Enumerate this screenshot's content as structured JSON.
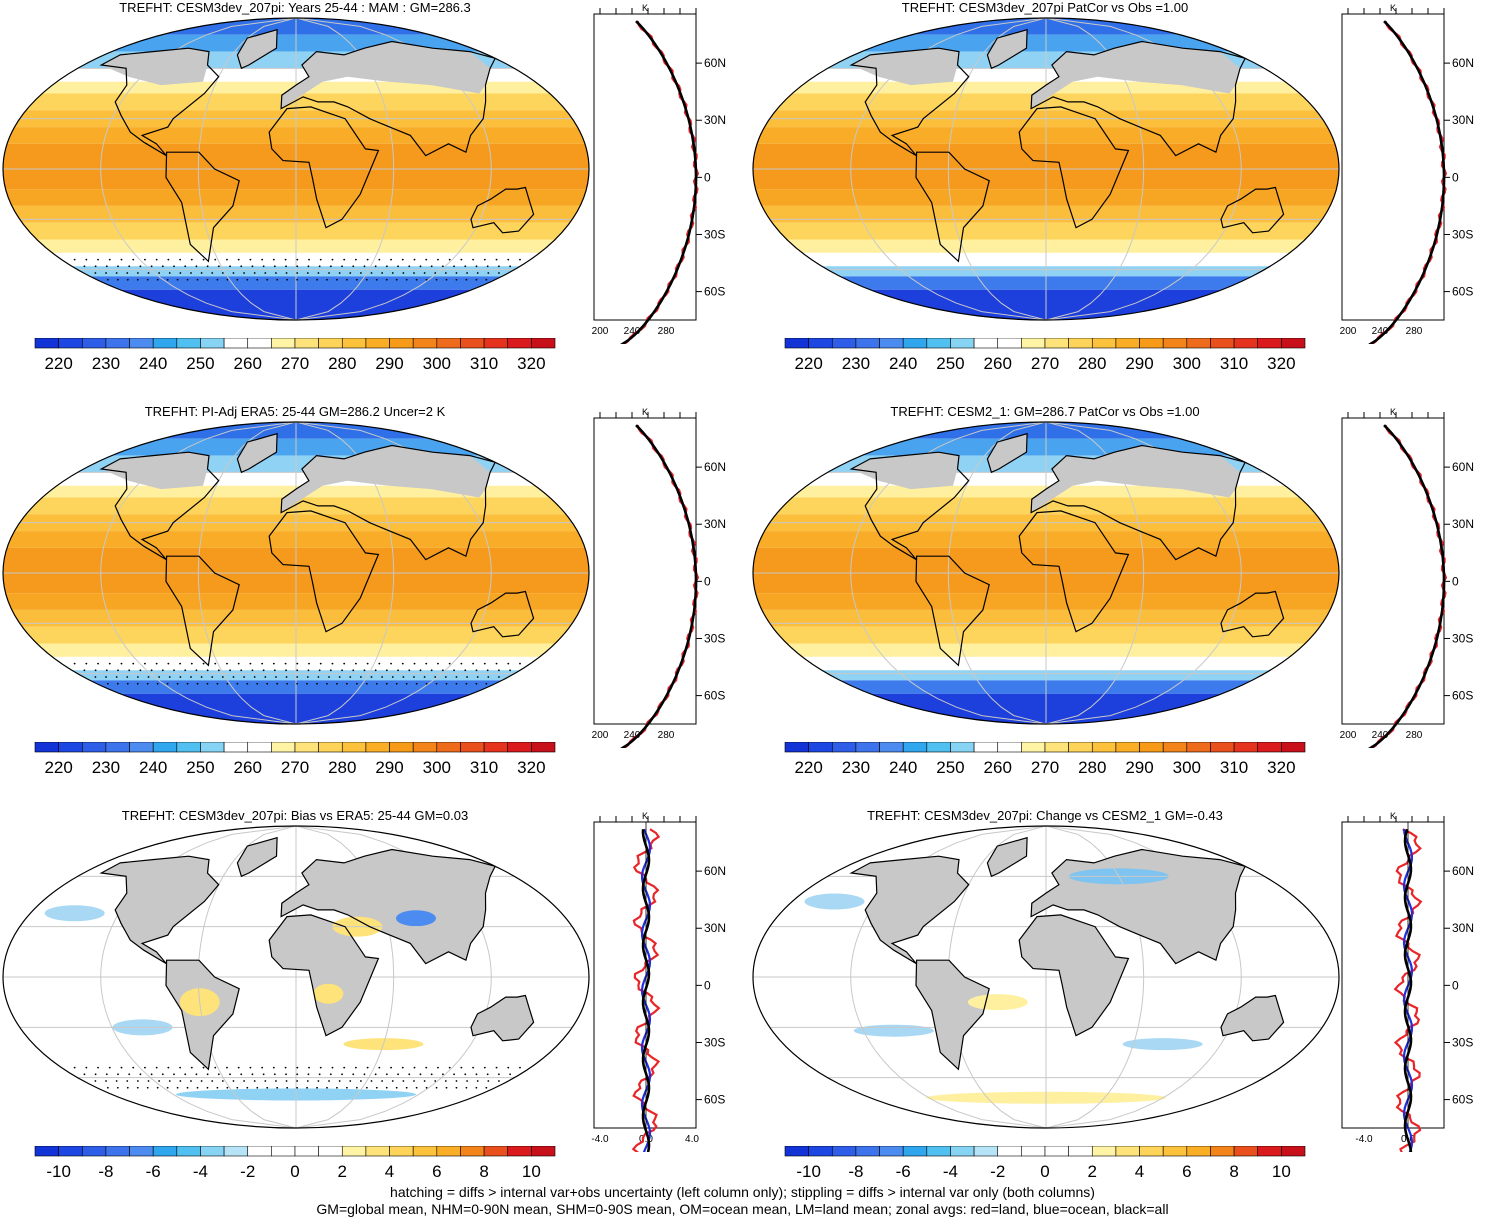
{
  "footer": {
    "line1": "hatching = diffs > internal var+obs uncertainty (left column only); stippling = diffs > internal var only (both columns)",
    "line2": "GM=global mean, NHM=0-90N mean, SHM=0-90S mean, OM=ocean mean, LM=land mean; zonal avgs: red=land, blue=ocean, black=all"
  },
  "colors": {
    "land": "#e8262a",
    "ocean": "#1f2ee0",
    "all": "#000000",
    "landmask": "#c8c8c8"
  },
  "profile_axes": {
    "unit": "K",
    "lat_labels": [
      "60N",
      "30N",
      "0",
      "30S",
      "60S"
    ],
    "abs_x_labels": [
      "200",
      "240",
      "280"
    ],
    "left_diff_x_labels": [
      "-4.0",
      "0.0",
      "4.0"
    ],
    "right_diff_x_labels": [
      "-4.0",
      "0.0"
    ]
  },
  "colorbars": {
    "absolute": {
      "labels": [
        "220",
        "230",
        "240",
        "250",
        "260",
        "270",
        "280",
        "290",
        "300",
        "310",
        "320"
      ],
      "colors": [
        "#1233d6",
        "#1d47e2",
        "#2e5ee8",
        "#3d74ec",
        "#4c8bf0",
        "#2fa6ee",
        "#4fc0f0",
        "#86d3f3",
        "#ffffff",
        "#ffffff",
        "#fff3a6",
        "#fde37a",
        "#fdd35a",
        "#fcc23c",
        "#f9ae25",
        "#f69a18",
        "#f2841a",
        "#ee6b1c",
        "#ea501d",
        "#e5331e",
        "#da1a1c",
        "#c7101a"
      ]
    },
    "difference": {
      "labels": [
        "-10",
        "-8",
        "-6",
        "-4",
        "-2",
        "0",
        "2",
        "4",
        "6",
        "8",
        "10"
      ],
      "colors": [
        "#1233d6",
        "#1d47e2",
        "#2e5ee8",
        "#3d74ec",
        "#4c8bf0",
        "#2fa6ee",
        "#4fc0f0",
        "#86d3f3",
        "#b7e3f7",
        "#ffffff",
        "#ffffff",
        "#ffffff",
        "#ffffff",
        "#fff3a6",
        "#fde37a",
        "#fdd35a",
        "#fcc23c",
        "#f9ae25",
        "#f2841a",
        "#ea501d",
        "#da1a1c",
        "#c7101a"
      ]
    }
  },
  "panels": [
    {
      "id": "p1",
      "title": "TREFHT: CESM3dev_207pi: Years 25-44 : MAM : GM=286.3",
      "type": "absolute",
      "hatched": true
    },
    {
      "id": "p2",
      "title": "TREFHT: CESM3dev_207pi PatCor vs Obs =1.00",
      "type": "absolute",
      "hatched": false
    },
    {
      "id": "p3",
      "title": "TREFHT: PI-Adj ERA5: 25-44 GM=286.2 Uncer=2 K",
      "type": "absolute",
      "hatched": true
    },
    {
      "id": "p4",
      "title": "TREFHT: CESM2_1: GM=286.7 PatCor vs Obs =1.00",
      "type": "absolute",
      "hatched": false
    },
    {
      "id": "p5",
      "title": "TREFHT: CESM3dev_207pi: Bias vs ERA5: 25-44 GM=0.03",
      "type": "bias",
      "hatched": true
    },
    {
      "id": "p6",
      "title": "TREFHT: CESM3dev_207pi: Change vs CESM2_1 GM=-0.43",
      "type": "change",
      "hatched": false
    }
  ]
}
